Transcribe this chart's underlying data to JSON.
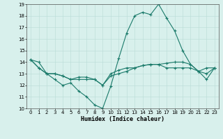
{
  "xlabel": "Humidex (Indice chaleur)",
  "x_values": [
    0,
    1,
    2,
    3,
    4,
    5,
    6,
    7,
    8,
    9,
    10,
    11,
    12,
    13,
    14,
    15,
    16,
    17,
    18,
    19,
    20,
    21,
    22,
    23
  ],
  "lines": [
    [
      14.2,
      14.0,
      13.0,
      12.5,
      12.0,
      12.2,
      11.5,
      11.0,
      10.3,
      10.0,
      11.9,
      14.3,
      16.5,
      18.0,
      18.3,
      18.1,
      19.0,
      17.8,
      16.7,
      15.0,
      13.8,
      13.2,
      12.5,
      13.5
    ],
    [
      14.2,
      13.5,
      13.0,
      13.0,
      12.8,
      12.5,
      12.7,
      12.7,
      12.5,
      12.0,
      13.0,
      13.3,
      13.5,
      13.5,
      13.7,
      13.8,
      13.8,
      13.9,
      14.0,
      14.0,
      13.8,
      13.2,
      13.5,
      13.5
    ],
    [
      14.2,
      13.5,
      13.0,
      13.0,
      12.8,
      12.5,
      12.5,
      12.5,
      12.5,
      12.0,
      12.8,
      13.0,
      13.2,
      13.5,
      13.7,
      13.8,
      13.8,
      13.5,
      13.5,
      13.5,
      13.5,
      13.2,
      13.0,
      13.5
    ]
  ],
  "line_color": "#1a7a6a",
  "bg_color": "#d8f0ec",
  "grid_color": "#b8dcd6",
  "ylim": [
    10,
    19
  ],
  "xlim": [
    -0.5,
    23.5
  ],
  "yticks": [
    10,
    11,
    12,
    13,
    14,
    15,
    16,
    17,
    18,
    19
  ],
  "xticks": [
    0,
    1,
    2,
    3,
    4,
    5,
    6,
    7,
    8,
    9,
    10,
    11,
    12,
    13,
    14,
    15,
    16,
    17,
    18,
    19,
    20,
    21,
    22,
    23
  ],
  "xlabel_fontsize": 6,
  "tick_fontsize": 5,
  "linewidth": 0.8,
  "markersize": 2.5
}
